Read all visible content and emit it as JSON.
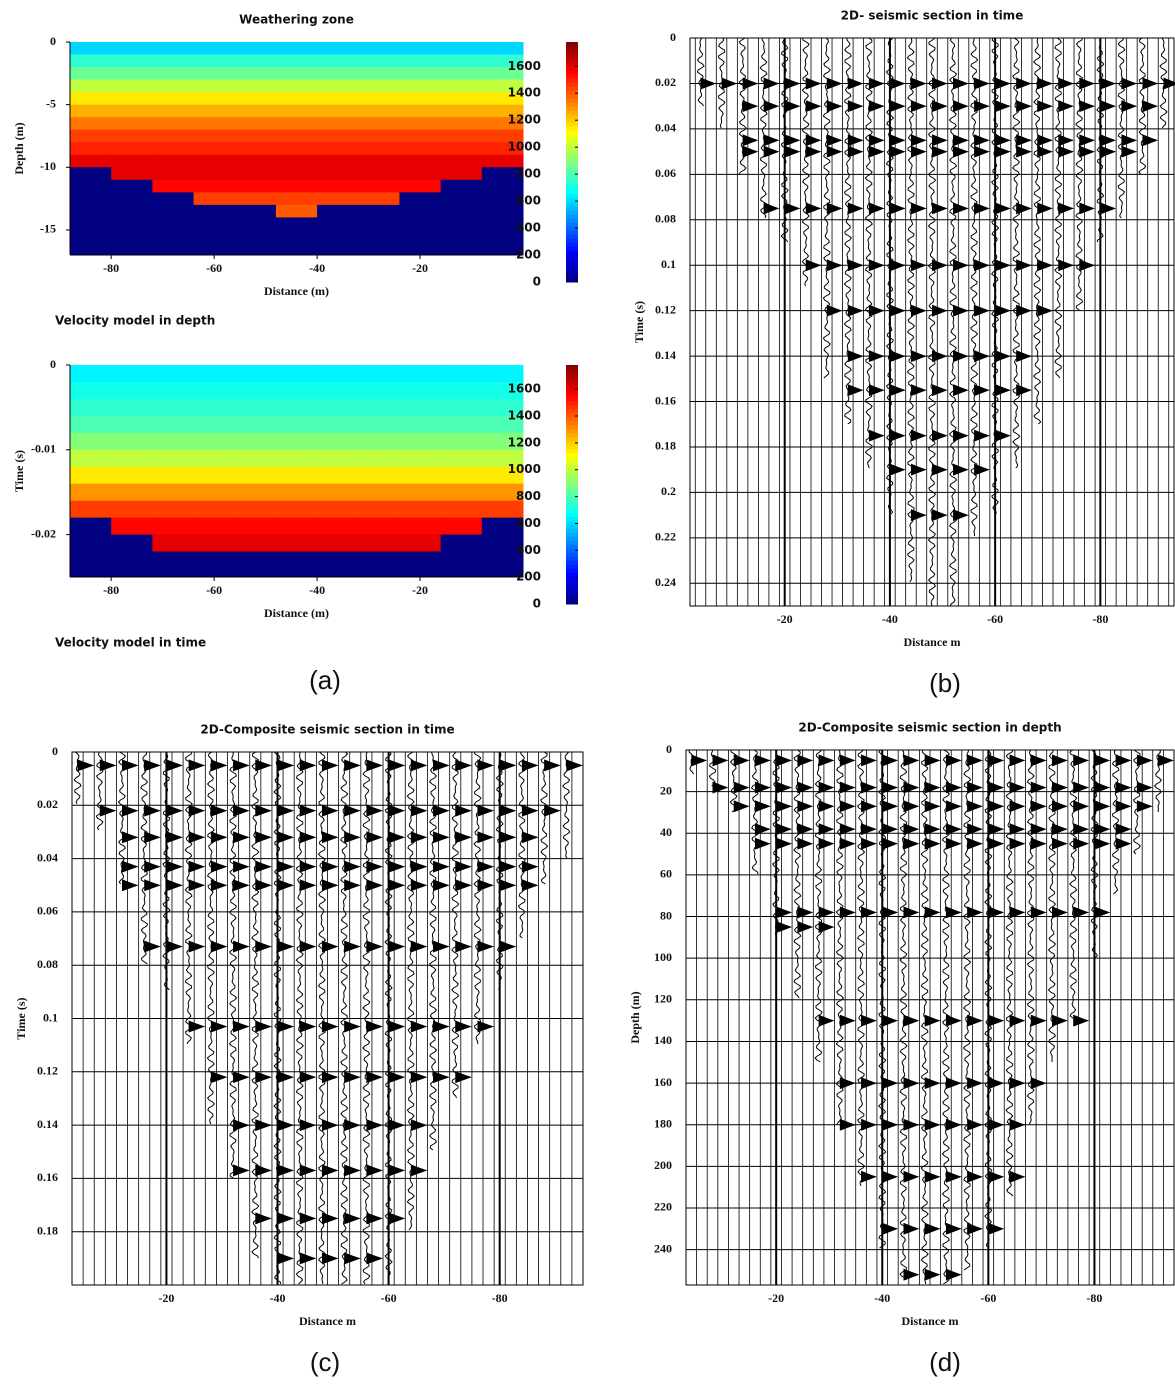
{
  "panel_labels": [
    "(a)",
    "(b)",
    "(c)",
    "(d)"
  ],
  "chart_data": [
    {
      "type": "heatmap",
      "title": "Weathering zone",
      "caption": "Velocity model in depth",
      "xlabel": "Distance (m)",
      "ylabel": "Depth (m)",
      "xlim": [
        -88,
        0
      ],
      "ylim": [
        0,
        -17
      ],
      "xticks": [
        -80,
        -60,
        -40,
        -20
      ],
      "yticks": [
        0,
        -5,
        -10,
        -15
      ],
      "xbins": [
        -88,
        -80,
        -72,
        -64,
        -56,
        -48,
        -40,
        -32,
        -24,
        -16,
        -8,
        0
      ],
      "ybins": [
        0,
        -1,
        -2,
        -3,
        -4,
        -5,
        -6,
        -7,
        -8,
        -9,
        -10,
        -11,
        -12,
        -13,
        -14,
        -15,
        -16,
        -17
      ],
      "z": [
        [
          600,
          600,
          600,
          600,
          600,
          600,
          600,
          600,
          600,
          600,
          600
        ],
        [
          750,
          750,
          750,
          750,
          750,
          750,
          750,
          750,
          750,
          750,
          750
        ],
        [
          850,
          850,
          850,
          850,
          850,
          850,
          850,
          850,
          850,
          850,
          850
        ],
        [
          1000,
          1000,
          1000,
          1000,
          1000,
          1000,
          1000,
          1000,
          1000,
          1000,
          1000
        ],
        [
          1150,
          1150,
          1150,
          1150,
          1150,
          1150,
          1150,
          1150,
          1150,
          1150,
          1150
        ],
        [
          1250,
          1250,
          1250,
          1250,
          1250,
          1250,
          1250,
          1250,
          1250,
          1250,
          1250
        ],
        [
          1350,
          1350,
          1350,
          1350,
          1350,
          1350,
          1350,
          1350,
          1350,
          1350,
          1350
        ],
        [
          1450,
          1450,
          1450,
          1450,
          1450,
          1450,
          1450,
          1450,
          1450,
          1450,
          1450
        ],
        [
          1500,
          1500,
          1500,
          1500,
          1500,
          1500,
          1500,
          1500,
          1500,
          1500,
          1500
        ],
        [
          1600,
          1600,
          1600,
          1600,
          1600,
          1600,
          1600,
          1600,
          1600,
          1600,
          1600
        ],
        [
          0,
          1600,
          1600,
          1600,
          1600,
          1600,
          1600,
          1600,
          1600,
          1600,
          0
        ],
        [
          0,
          0,
          1550,
          1550,
          1550,
          1550,
          1550,
          1550,
          1550,
          0,
          0
        ],
        [
          0,
          0,
          0,
          1450,
          1450,
          1450,
          1450,
          1450,
          0,
          0,
          0
        ],
        [
          0,
          0,
          0,
          0,
          0,
          1400,
          0,
          0,
          0,
          0,
          0
        ],
        [
          0,
          0,
          0,
          0,
          0,
          0,
          0,
          0,
          0,
          0,
          0
        ],
        [
          0,
          0,
          0,
          0,
          0,
          0,
          0,
          0,
          0,
          0,
          0
        ],
        [
          0,
          0,
          0,
          0,
          0,
          0,
          0,
          0,
          0,
          0,
          0
        ]
      ],
      "clim": [
        0,
        1780
      ],
      "colorbar_ticks": [
        0,
        200,
        400,
        600,
        800,
        1000,
        1200,
        1400,
        1600
      ],
      "colormap": "jet"
    },
    {
      "type": "heatmap",
      "caption": "Velocity model in time",
      "xlabel": "Distance (m)",
      "ylabel": "Time (s)",
      "xlim": [
        -88,
        0
      ],
      "ylim": [
        0,
        -0.025
      ],
      "xticks": [
        -80,
        -60,
        -40,
        -20
      ],
      "yticks": [
        0,
        -0.01,
        -0.02
      ],
      "xbins": [
        -88,
        -80,
        -72,
        -64,
        -56,
        -48,
        -40,
        -32,
        -24,
        -16,
        -8,
        0
      ],
      "ybins": [
        0,
        -0.002,
        -0.004,
        -0.006,
        -0.008,
        -0.01,
        -0.012,
        -0.014,
        -0.016,
        -0.018,
        -0.02,
        -0.022,
        -0.025
      ],
      "z": [
        [
          650,
          650,
          650,
          650,
          650,
          650,
          650,
          650,
          650,
          650,
          650
        ],
        [
          700,
          700,
          700,
          700,
          700,
          700,
          700,
          700,
          700,
          700,
          700
        ],
        [
          750,
          750,
          750,
          750,
          750,
          750,
          750,
          750,
          750,
          750,
          750
        ],
        [
          800,
          800,
          800,
          800,
          800,
          800,
          800,
          800,
          800,
          800,
          800
        ],
        [
          900,
          900,
          900,
          900,
          900,
          900,
          900,
          900,
          900,
          900,
          900
        ],
        [
          1000,
          1000,
          1000,
          1000,
          1000,
          1000,
          1000,
          1000,
          1000,
          1000,
          1000
        ],
        [
          1150,
          1150,
          1150,
          1150,
          1150,
          1150,
          1150,
          1150,
          1150,
          1150,
          1150
        ],
        [
          1300,
          1300,
          1300,
          1300,
          1300,
          1300,
          1300,
          1300,
          1300,
          1300,
          1300
        ],
        [
          1450,
          1450,
          1450,
          1450,
          1450,
          1450,
          1450,
          1450,
          1450,
          1450,
          1450
        ],
        [
          0,
          1550,
          1550,
          1550,
          1550,
          1550,
          1550,
          1550,
          1550,
          1550,
          0
        ],
        [
          0,
          0,
          1600,
          1600,
          1600,
          1600,
          1600,
          1600,
          1600,
          0,
          0
        ],
        [
          0,
          0,
          0,
          0,
          0,
          0,
          0,
          0,
          0,
          0,
          0
        ]
      ],
      "clim": [
        0,
        1780
      ],
      "colorbar_ticks": [
        0,
        200,
        400,
        600,
        800,
        1000,
        1200,
        1400,
        1600
      ],
      "colormap": "jet"
    },
    {
      "type": "wiggle",
      "title": "2D- seismic section in time",
      "xlabel": "Distance m",
      "ylabel": "Time (s)",
      "xlim": [
        -2,
        -94
      ],
      "ylim": [
        0,
        0.25
      ],
      "xticks": [
        -20,
        -40,
        -60,
        -80
      ],
      "yticks": [
        0,
        0.02,
        0.04,
        0.06,
        0.08,
        0.1,
        0.12,
        0.14,
        0.16,
        0.18,
        0.2,
        0.22,
        0.24
      ],
      "grid": true,
      "color": "#000000",
      "traces": {
        "x": [
          -4,
          -8,
          -12,
          -16,
          -20,
          -24,
          -28,
          -32,
          -36,
          -40,
          -44,
          -48,
          -52,
          -56,
          -60,
          -64,
          -68,
          -72,
          -76,
          -80,
          -84,
          -88,
          -92
        ],
        "end": [
          0.03,
          0.04,
          0.06,
          0.08,
          0.09,
          0.11,
          0.15,
          0.17,
          0.19,
          0.21,
          0.24,
          0.25,
          0.25,
          0.22,
          0.21,
          0.19,
          0.17,
          0.15,
          0.12,
          0.09,
          0.08,
          0.06,
          0.04
        ]
      },
      "events": {
        "time": [
          0.02,
          0.03,
          0.045,
          0.05,
          0.075,
          0.1,
          0.12,
          0.14,
          0.155,
          0.175,
          0.19,
          0.21
        ],
        "from": [
          -4,
          -10,
          -12,
          -12,
          -16,
          -24,
          -26,
          -30,
          -32,
          -36,
          -40,
          -42
        ],
        "to": [
          -92,
          -90,
          -88,
          -86,
          -82,
          -76,
          -70,
          -66,
          -64,
          -60,
          -58,
          -52
        ]
      }
    },
    {
      "type": "wiggle",
      "title": "2D-Composite seismic section in time",
      "xlabel": "Distance m",
      "ylabel": "Time (s)",
      "xlim": [
        -3,
        -95
      ],
      "ylim": [
        0,
        0.2
      ],
      "xticks": [
        -20,
        -40,
        -60,
        -80
      ],
      "yticks": [
        0,
        0.02,
        0.04,
        0.06,
        0.08,
        0.1,
        0.12,
        0.14,
        0.16,
        0.18
      ],
      "grid": true,
      "color": "#000000",
      "traces": {
        "x": [
          -4,
          -8,
          -12,
          -16,
          -20,
          -24,
          -28,
          -32,
          -36,
          -40,
          -44,
          -48,
          -52,
          -56,
          -60,
          -64,
          -68,
          -72,
          -76,
          -80,
          -84,
          -88,
          -92
        ],
        "end": [
          0.02,
          0.03,
          0.05,
          0.08,
          0.09,
          0.11,
          0.14,
          0.16,
          0.19,
          0.2,
          0.2,
          0.2,
          0.2,
          0.2,
          0.2,
          0.18,
          0.15,
          0.13,
          0.11,
          0.09,
          0.07,
          0.05,
          0.04
        ]
      },
      "events": {
        "time": [
          0.005,
          0.022,
          0.032,
          0.043,
          0.05,
          0.073,
          0.103,
          0.122,
          0.14,
          0.157,
          0.175,
          0.19
        ],
        "from": [
          -4,
          -6,
          -12,
          -10,
          -10,
          -16,
          -22,
          -26,
          -30,
          -32,
          -36,
          -38
        ],
        "to": [
          -94,
          -90,
          -86,
          -86,
          -84,
          -80,
          -76,
          -72,
          -66,
          -64,
          -62,
          -58
        ]
      }
    },
    {
      "type": "wiggle",
      "title": "2D-Composite seismic section in depth",
      "xlabel": "Distance m",
      "ylabel": "Depth (m)",
      "xlim": [
        -3,
        -95
      ],
      "ylim": [
        0,
        257
      ],
      "xticks": [
        -20,
        -40,
        -60,
        -80
      ],
      "yticks": [
        0,
        20,
        40,
        60,
        80,
        100,
        120,
        140,
        160,
        180,
        200,
        220,
        240
      ],
      "grid": true,
      "color": "#000000",
      "traces": {
        "x": [
          -4,
          -8,
          -12,
          -16,
          -20,
          -24,
          -28,
          -32,
          -36,
          -40,
          -44,
          -48,
          -52,
          -56,
          -60,
          -64,
          -68,
          -72,
          -76,
          -80,
          -84,
          -88,
          -92
        ],
        "end": [
          12,
          18,
          30,
          60,
          90,
          120,
          150,
          180,
          210,
          240,
          255,
          257,
          257,
          250,
          240,
          215,
          180,
          150,
          130,
          100,
          70,
          50,
          30
        ]
      },
      "events": {
        "time": [
          5,
          18,
          27,
          38,
          45,
          78,
          85,
          130,
          160,
          180,
          205,
          230,
          252
        ],
        "from": [
          -4,
          -6,
          -12,
          -12,
          -12,
          -16,
          -16,
          -24,
          -26,
          -32,
          -34,
          -36,
          -42
        ],
        "to": [
          -94,
          -88,
          -88,
          -86,
          -84,
          -80,
          -30,
          -76,
          -70,
          -66,
          -64,
          -62,
          -56
        ]
      }
    }
  ]
}
